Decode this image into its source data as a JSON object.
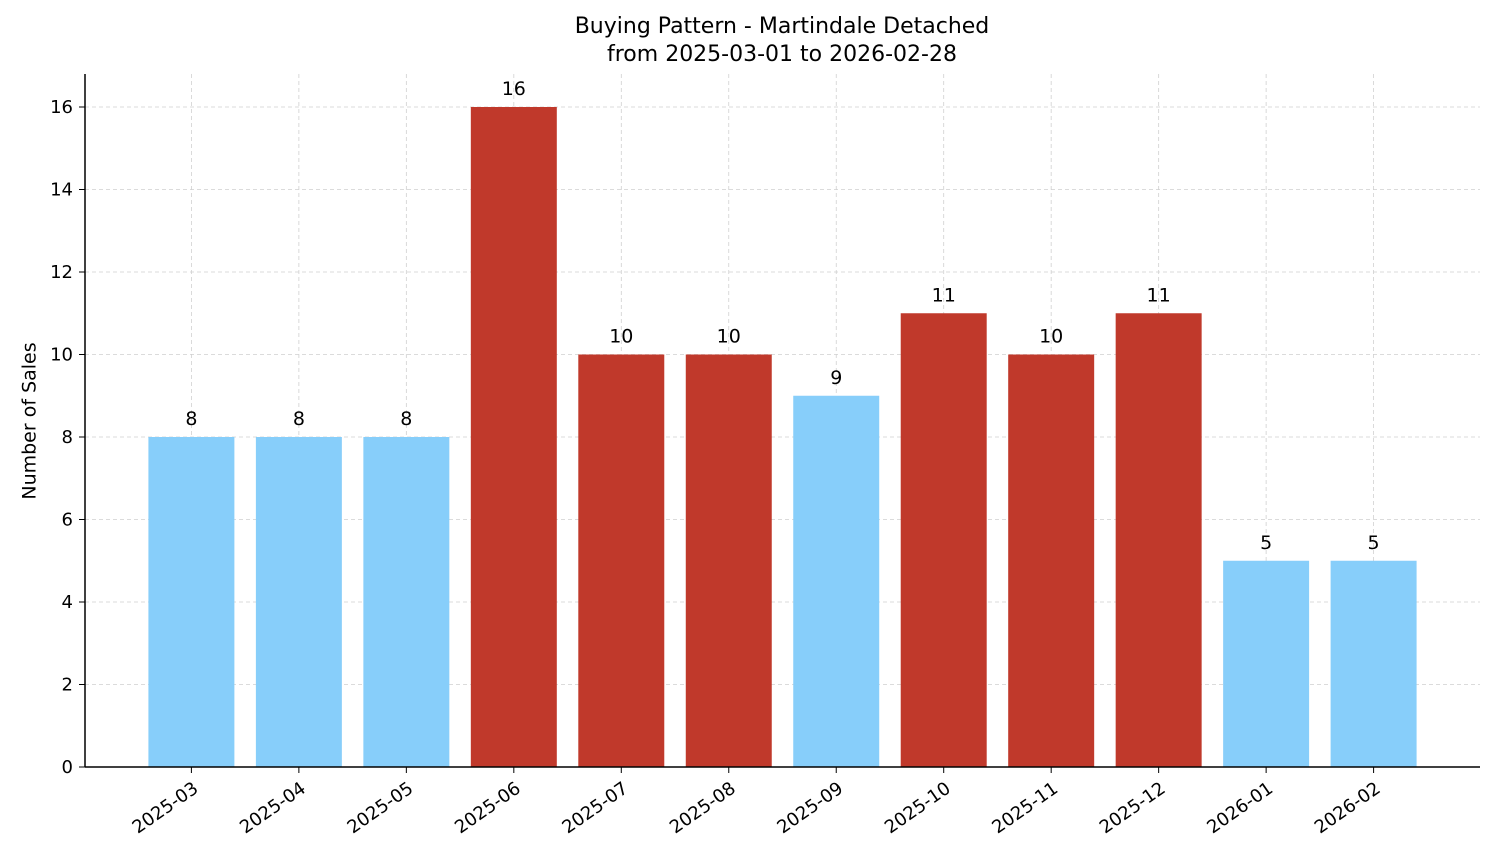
{
  "chart_data": {
    "type": "bar",
    "title": "Buying Pattern - Martindale Detached",
    "subtitle": "from 2025-03-01 to 2026-02-28",
    "y_label": "Number of Sales",
    "categories": [
      "2025-03",
      "2025-04",
      "2025-05",
      "2025-06",
      "2025-07",
      "2025-08",
      "2025-09",
      "2025-10",
      "2025-11",
      "2025-12",
      "2026-01",
      "2026-02"
    ],
    "values": [
      8,
      8,
      8,
      16,
      10,
      10,
      9,
      11,
      10,
      11,
      5,
      5
    ],
    "colors": [
      "#87cefa",
      "#87cefa",
      "#87cefa",
      "#c0392b",
      "#c0392b",
      "#c0392b",
      "#87cefa",
      "#c0392b",
      "#c0392b",
      "#c0392b",
      "#87cefa",
      "#87cefa"
    ],
    "ylim": [
      0,
      16.8
    ],
    "yticks": [
      0,
      2,
      4,
      6,
      8,
      10,
      12,
      14,
      16
    ],
    "grid": true
  }
}
